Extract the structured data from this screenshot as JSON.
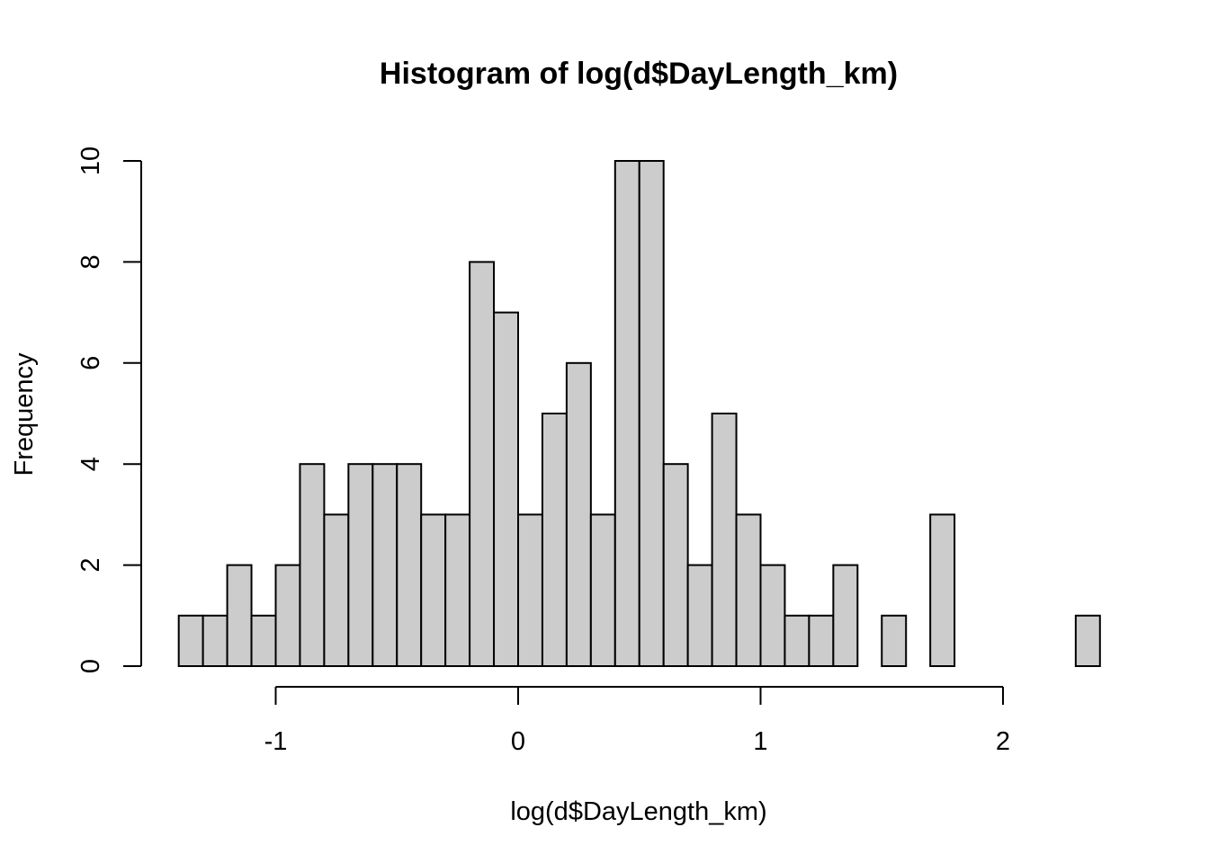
{
  "chart_data": {
    "type": "bar",
    "title": "Histogram of log(d$DayLength_km)",
    "xlabel": "log(d$DayLength_km)",
    "ylabel": "Frequency",
    "bin_width": 0.1,
    "bins": [
      {
        "start": -1.4,
        "end": -1.3,
        "count": 1
      },
      {
        "start": -1.3,
        "end": -1.2,
        "count": 1
      },
      {
        "start": -1.2,
        "end": -1.1,
        "count": 2
      },
      {
        "start": -1.1,
        "end": -1.0,
        "count": 1
      },
      {
        "start": -1.0,
        "end": -0.9,
        "count": 2
      },
      {
        "start": -0.9,
        "end": -0.8,
        "count": 4
      },
      {
        "start": -0.8,
        "end": -0.7,
        "count": 3
      },
      {
        "start": -0.7,
        "end": -0.6,
        "count": 4
      },
      {
        "start": -0.6,
        "end": -0.5,
        "count": 4
      },
      {
        "start": -0.5,
        "end": -0.4,
        "count": 4
      },
      {
        "start": -0.4,
        "end": -0.3,
        "count": 3
      },
      {
        "start": -0.3,
        "end": -0.2,
        "count": 3
      },
      {
        "start": -0.2,
        "end": -0.1,
        "count": 8
      },
      {
        "start": -0.1,
        "end": 0.0,
        "count": 7
      },
      {
        "start": 0.0,
        "end": 0.1,
        "count": 3
      },
      {
        "start": 0.1,
        "end": 0.2,
        "count": 5
      },
      {
        "start": 0.2,
        "end": 0.3,
        "count": 6
      },
      {
        "start": 0.3,
        "end": 0.4,
        "count": 3
      },
      {
        "start": 0.4,
        "end": 0.5,
        "count": 10
      },
      {
        "start": 0.5,
        "end": 0.6,
        "count": 10
      },
      {
        "start": 0.6,
        "end": 0.7,
        "count": 4
      },
      {
        "start": 0.7,
        "end": 0.8,
        "count": 2
      },
      {
        "start": 0.8,
        "end": 0.9,
        "count": 5
      },
      {
        "start": 0.9,
        "end": 1.0,
        "count": 3
      },
      {
        "start": 1.0,
        "end": 1.1,
        "count": 2
      },
      {
        "start": 1.1,
        "end": 1.2,
        "count": 1
      },
      {
        "start": 1.2,
        "end": 1.3,
        "count": 1
      },
      {
        "start": 1.3,
        "end": 1.4,
        "count": 2
      },
      {
        "start": 1.4,
        "end": 1.5,
        "count": 0
      },
      {
        "start": 1.5,
        "end": 1.6,
        "count": 1
      },
      {
        "start": 1.6,
        "end": 1.7,
        "count": 0
      },
      {
        "start": 1.7,
        "end": 1.8,
        "count": 3
      },
      {
        "start": 1.8,
        "end": 1.9,
        "count": 0
      },
      {
        "start": 1.9,
        "end": 2.0,
        "count": 0
      },
      {
        "start": 2.0,
        "end": 2.1,
        "count": 0
      },
      {
        "start": 2.1,
        "end": 2.2,
        "count": 0
      },
      {
        "start": 2.2,
        "end": 2.3,
        "count": 0
      },
      {
        "start": 2.3,
        "end": 2.4,
        "count": 1
      }
    ],
    "x_ticks": [
      -1,
      0,
      1,
      2
    ],
    "x_tick_labels": [
      "-1",
      "0",
      "1",
      "2"
    ],
    "y_ticks": [
      0,
      2,
      4,
      6,
      8,
      10
    ],
    "y_tick_labels": [
      "0",
      "2",
      "4",
      "6",
      "8",
      "10"
    ],
    "xlim": [
      -1.4,
      2.4
    ],
    "ylim": [
      0,
      10
    ],
    "grid": false,
    "legend": "none",
    "colors": {
      "bar_fill": "#cccccc",
      "bar_stroke": "#000000"
    }
  }
}
